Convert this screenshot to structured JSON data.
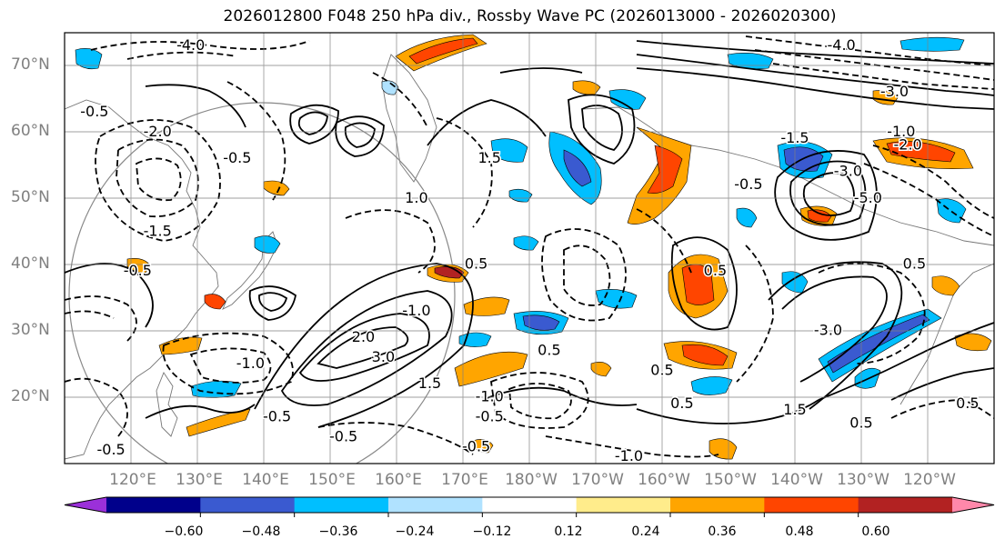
{
  "title": "2026012800 F048 250 hPa div., Rossby Wave PC (2026013000 - 2026020300)",
  "lat_labels": [
    "70°N",
    "60°N",
    "50°N",
    "40°N",
    "30°N",
    "20°N"
  ],
  "lon_labels": [
    "120°E",
    "130°E",
    "140°E",
    "150°E",
    "160°E",
    "170°E",
    "180°W",
    "170°W",
    "160°W",
    "150°W",
    "140°W",
    "130°W",
    "120°W"
  ],
  "colorbar": {
    "colors": [
      "#9b30d9",
      "#00008b",
      "#3a5ad0",
      "#00bfff",
      "#b0e2ff",
      "#ffffff",
      "#ffec8b",
      "#ffa500",
      "#ff4500",
      "#b22222",
      "#ff88aa"
    ],
    "tick_labels": [
      "−0.60",
      "−0.48",
      "−0.36",
      "−0.24",
      "−0.12",
      "0.12",
      "0.24",
      "0.36",
      "0.48",
      "0.60"
    ]
  },
  "contour_labels": [
    {
      "text": "-0.5",
      "lon": 114.5,
      "lat": 63
    },
    {
      "text": "-2.0",
      "lon": 124,
      "lat": 60
    },
    {
      "text": "-0.5",
      "lon": 136,
      "lat": 56
    },
    {
      "text": "-1.5",
      "lon": 124,
      "lat": 45
    },
    {
      "text": "-0.5",
      "lon": 121,
      "lat": 39
    },
    {
      "text": "-1.0",
      "lon": 138,
      "lat": 25
    },
    {
      "text": "-0.5",
      "lon": 142,
      "lat": 17
    },
    {
      "text": "-0.5",
      "lon": 117,
      "lat": 12
    },
    {
      "text": "-0.5",
      "lon": 152,
      "lat": 14
    },
    {
      "text": "-0.5",
      "lon": 174,
      "lat": 17
    },
    {
      "text": "-0.5",
      "lon": 172,
      "lat": 12.5
    },
    {
      "text": "-4.0",
      "lon": 129,
      "lat": 73
    },
    {
      "text": "1.0",
      "lon": 163,
      "lat": 50
    },
    {
      "text": "2.0",
      "lon": 155,
      "lat": 29
    },
    {
      "text": "3.0",
      "lon": 158,
      "lat": 26
    },
    {
      "text": "-1.0",
      "lon": 163,
      "lat": 33
    },
    {
      "text": "0.5",
      "lon": 183,
      "lat": 27
    },
    {
      "text": "0.5",
      "lon": 172,
      "lat": 40
    },
    {
      "text": "0.5",
      "lon": 208,
      "lat": 39
    },
    {
      "text": "1.5",
      "lon": 174,
      "lat": 56
    },
    {
      "text": "-0.5",
      "lon": 213,
      "lat": 52
    },
    {
      "text": "-3.0",
      "lon": 228,
      "lat": 54
    },
    {
      "text": "-4.0",
      "lon": 227,
      "lat": 73
    },
    {
      "text": "-3.0",
      "lon": 235,
      "lat": 66
    },
    {
      "text": "-1.0",
      "lon": 236,
      "lat": 60
    },
    {
      "text": "-5.0",
      "lon": 231,
      "lat": 50
    },
    {
      "text": "-1.5",
      "lon": 220,
      "lat": 59
    },
    {
      "text": "0.5",
      "lon": 238,
      "lat": 40
    },
    {
      "text": "-3.0",
      "lon": 225,
      "lat": 30
    },
    {
      "text": "0.5",
      "lon": 246,
      "lat": 19
    },
    {
      "text": "-1.0",
      "lon": 195,
      "lat": 11
    },
    {
      "text": "1.5",
      "lon": 165,
      "lat": 22
    },
    {
      "text": "-1.0",
      "lon": 174,
      "lat": 20
    },
    {
      "text": "1.5",
      "lon": 220,
      "lat": 18
    },
    {
      "text": "0.5",
      "lon": 230,
      "lat": 16
    },
    {
      "text": "-2.0",
      "lon": 237,
      "lat": 58
    },
    {
      "text": "0.5",
      "lon": 200,
      "lat": 24
    },
    {
      "text": "0.5",
      "lon": 203,
      "lat": 19
    }
  ]
}
